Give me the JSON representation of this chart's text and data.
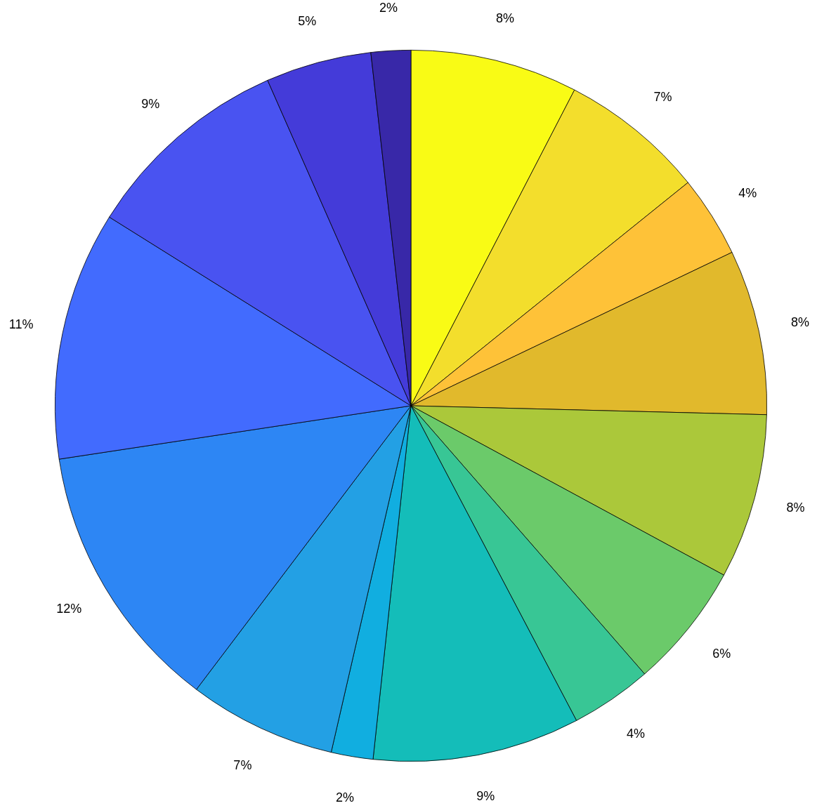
{
  "chart_data": {
    "type": "pie",
    "categories": [
      null,
      null,
      null,
      null,
      null,
      null,
      null,
      null,
      null,
      null,
      null,
      null,
      null,
      null,
      null
    ],
    "values": [
      7.6,
      6.6,
      3.7,
      7.5,
      7.5,
      5.7,
      3.7,
      9.4,
      1.9,
      6.7,
      12.3,
      11.3,
      9.5,
      4.8,
      1.8
    ],
    "value_labels": [
      "8%",
      "7%",
      "4%",
      "8%",
      "8%",
      "6%",
      "4%",
      "9%",
      "2%",
      "7%",
      "12%",
      "11%",
      "9%",
      "5%",
      "2%"
    ],
    "colors": [
      "#f9fb15",
      "#f3de2c",
      "#fec238",
      "#e1b92c",
      "#abc83a",
      "#6bca6a",
      "#38c695",
      "#14bdb9",
      "#11aee0",
      "#23a0e4",
      "#2d86f4",
      "#426bfe",
      "#4953f1",
      "#443bd9",
      "#3828a8"
    ]
  }
}
